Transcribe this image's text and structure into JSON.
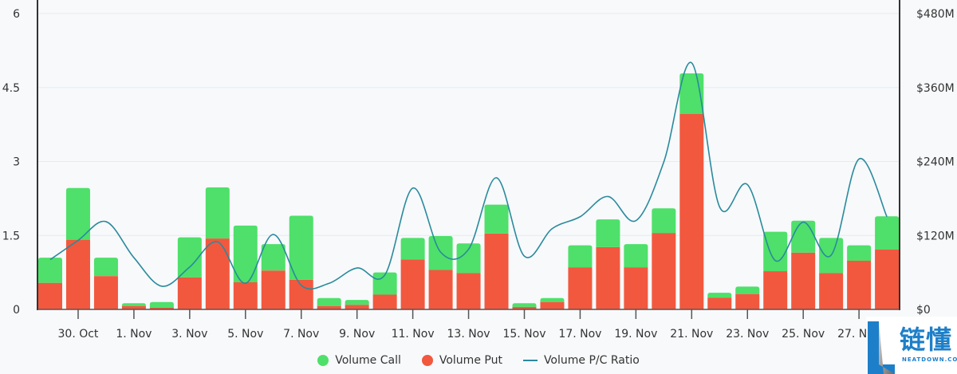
{
  "chart_data": {
    "type": "bar",
    "title": "",
    "xlabel": "",
    "ylabel": "",
    "y_left": {
      "range": [
        0,
        6
      ],
      "ticks": [
        "0",
        "1.5",
        "3",
        "4.5",
        "6"
      ]
    },
    "y_right": {
      "range": [
        0,
        480
      ],
      "unit": "$M",
      "ticks": [
        "$0",
        "$120M",
        "$240M",
        "$360M",
        "$480M"
      ]
    },
    "grid": true,
    "legend_position": "bottom",
    "x_tick_labels": [
      "30. Oct",
      "1. Nov",
      "3. Nov",
      "5. Nov",
      "7. Nov",
      "9. Nov",
      "11. Nov",
      "13. Nov",
      "15. Nov",
      "17. Nov",
      "19. Nov",
      "21. Nov",
      "23. Nov",
      "25. Nov",
      "27. Nov"
    ],
    "categories": [
      "29 Oct",
      "30 Oct",
      "31 Oct",
      "1 Nov",
      "2 Nov",
      "3 Nov",
      "4 Nov",
      "5 Nov",
      "6 Nov",
      "7 Nov",
      "8 Nov",
      "9 Nov",
      "10 Nov",
      "11 Nov",
      "12 Nov",
      "13 Nov",
      "14 Nov",
      "15 Nov",
      "16 Nov",
      "17 Nov",
      "18 Nov",
      "19 Nov",
      "20 Nov",
      "21 Nov",
      "22 Nov",
      "23 Nov",
      "24 Nov",
      "25 Nov",
      "26 Nov",
      "27 Nov",
      "28 Nov"
    ],
    "series": [
      {
        "name": "Volume Call",
        "type": "bar",
        "axis": "right",
        "color": "#4ee06a",
        "values": [
          41,
          84,
          30,
          4.5,
          9.4,
          65,
          83,
          92,
          43,
          104,
          13,
          8,
          36,
          35,
          55,
          48,
          47,
          6,
          6.5,
          36,
          45,
          38,
          40,
          66,
          8,
          12,
          64,
          52,
          57,
          25,
          54
        ]
      },
      {
        "name": "Volume Put",
        "type": "bar",
        "axis": "right",
        "color": "#f2583e",
        "values": [
          43,
          113,
          54,
          5.5,
          2.6,
          52,
          115,
          44,
          63,
          48,
          5.5,
          7.4,
          24,
          81,
          64,
          59,
          123,
          4,
          12,
          68,
          101,
          68,
          124,
          317,
          19,
          25,
          62,
          92,
          59,
          79,
          97
        ]
      },
      {
        "name": "Volume P/C Ratio",
        "type": "line",
        "axis": "left",
        "color": "#2a8a9c",
        "values": [
          1.01,
          1.4,
          1.78,
          1.05,
          0.47,
          0.86,
          1.37,
          0.53,
          1.52,
          0.49,
          0.53,
          0.84,
          0.7,
          2.46,
          1.16,
          1.22,
          2.67,
          1.08,
          1.64,
          1.88,
          2.29,
          1.8,
          2.99,
          5.0,
          2.08,
          2.53,
          0.99,
          1.77,
          1.1,
          3.05,
          1.88
        ]
      }
    ]
  },
  "legend": {
    "call": "Volume Call",
    "put": "Volume Put",
    "ratio": "Volume P/C Ratio"
  },
  "watermark": {
    "cn": "链懂",
    "en": "NEATDOWN.COM"
  }
}
